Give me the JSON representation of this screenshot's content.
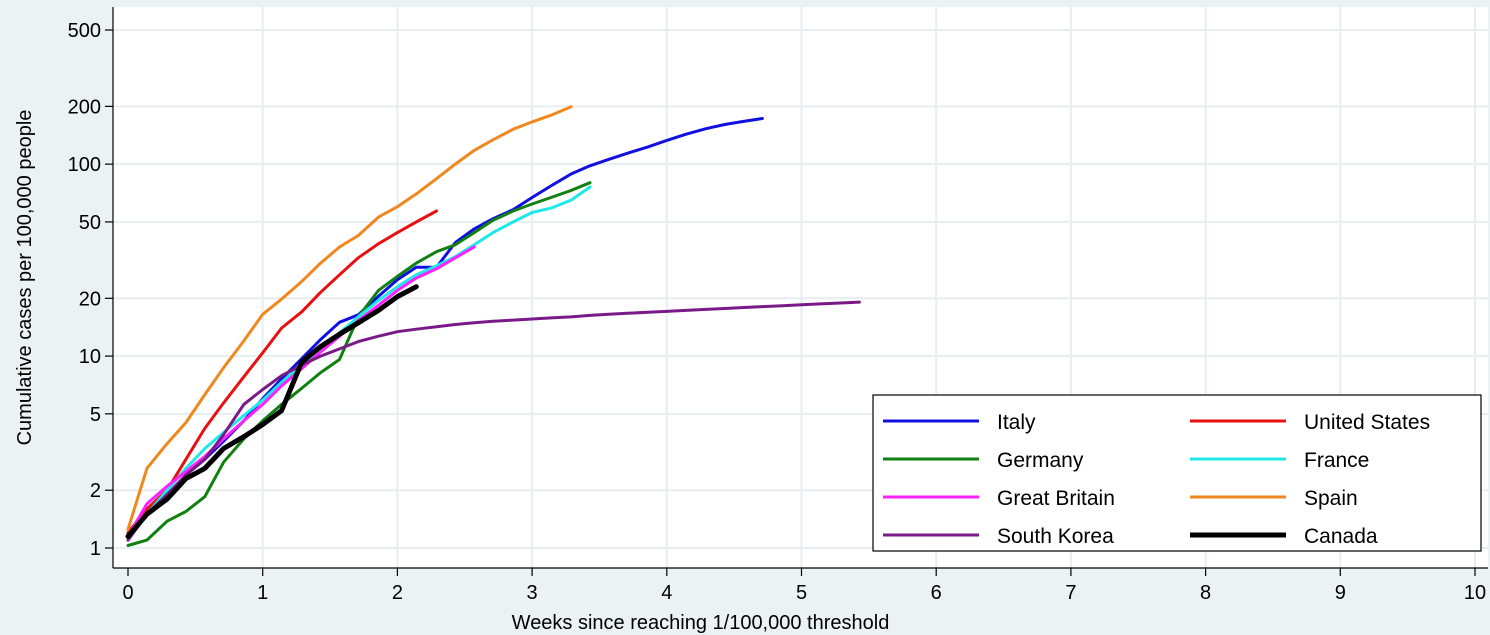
{
  "chart_data": {
    "type": "line",
    "title": "",
    "xlabel": "Weeks since reaching 1/100,000 threshold",
    "ylabel": "Cumulative cases per 100,000 people",
    "xlim": [
      0,
      10
    ],
    "ylim": [
      0.8,
      600
    ],
    "yscale": "log",
    "x_ticks": [
      "0",
      "1",
      "2",
      "3",
      "4",
      "5",
      "6",
      "7",
      "8",
      "9",
      "10"
    ],
    "y_ticks": [
      {
        "value": 1,
        "label": "1"
      },
      {
        "value": 2,
        "label": "2"
      },
      {
        "value": 5,
        "label": "5"
      },
      {
        "value": 10,
        "label": "10"
      },
      {
        "value": 20,
        "label": "20"
      },
      {
        "value": 50,
        "label": "50"
      },
      {
        "value": 100,
        "label": "100"
      },
      {
        "value": 200,
        "label": "200"
      },
      {
        "value": 500,
        "label": "500"
      }
    ],
    "grid": true,
    "legend_position": "bottom-right",
    "series": [
      {
        "name": "Italy",
        "color": "#1010e0",
        "width": 3,
        "x": [
          0,
          0.14,
          0.29,
          0.43,
          0.57,
          0.71,
          0.86,
          1.0,
          1.14,
          1.29,
          1.43,
          1.57,
          1.71,
          1.86,
          2.0,
          2.14,
          2.29,
          2.43,
          2.57,
          2.71,
          2.86,
          3.0,
          3.14,
          3.29,
          3.43,
          3.57,
          3.71,
          3.86,
          4.0,
          4.14,
          4.29,
          4.43,
          4.57,
          4.71
        ],
        "y": [
          1.1,
          1.6,
          1.9,
          2.4,
          2.9,
          3.6,
          4.6,
          6.0,
          7.6,
          9.7,
          12.2,
          15.0,
          16.4,
          20.5,
          25.0,
          29.0,
          29.0,
          39.0,
          46.0,
          52.0,
          58.0,
          67.0,
          77.0,
          89.0,
          98.0,
          106.0,
          114.0,
          123.0,
          133.0,
          143.0,
          153.0,
          161.0,
          167.0,
          173.0
        ]
      },
      {
        "name": "United States",
        "color": "#e81010",
        "width": 3,
        "x": [
          0,
          0.14,
          0.29,
          0.43,
          0.57,
          0.71,
          0.86,
          1.0,
          1.14,
          1.29,
          1.43,
          1.57,
          1.71,
          1.86,
          2.0,
          2.14,
          2.29
        ],
        "y": [
          1.2,
          1.6,
          2.0,
          2.9,
          4.2,
          5.7,
          7.8,
          10.4,
          14.0,
          17.0,
          21.5,
          26.5,
          32.5,
          38.5,
          44.0,
          50.0,
          57.0
        ]
      },
      {
        "name": "Germany",
        "color": "#108010",
        "width": 3,
        "x": [
          0,
          0.14,
          0.29,
          0.43,
          0.57,
          0.71,
          0.86,
          1.0,
          1.14,
          1.29,
          1.43,
          1.57,
          1.71,
          1.86,
          2.0,
          2.14,
          2.29,
          2.43,
          2.57,
          2.71,
          2.86,
          3.0,
          3.14,
          3.29,
          3.43
        ],
        "y": [
          1.03,
          1.1,
          1.38,
          1.55,
          1.85,
          2.8,
          3.7,
          4.6,
          5.6,
          6.8,
          8.2,
          9.6,
          16.0,
          22.0,
          26.0,
          30.5,
          35.0,
          38.0,
          44.0,
          51.0,
          57.0,
          62.0,
          67.0,
          73.0,
          80.0
        ]
      },
      {
        "name": "France",
        "color": "#20e8e8",
        "width": 3,
        "x": [
          0,
          0.14,
          0.29,
          0.43,
          0.57,
          0.71,
          0.86,
          1.0,
          1.14,
          1.29,
          1.43,
          1.57,
          1.71,
          1.86,
          2.0,
          2.14,
          2.29,
          2.43,
          2.57,
          2.71,
          2.86,
          3.0,
          3.14,
          3.29,
          3.43
        ],
        "y": [
          1.1,
          1.5,
          2.0,
          2.6,
          3.3,
          4.0,
          4.9,
          5.9,
          7.3,
          9.0,
          11.0,
          13.2,
          16.0,
          19.5,
          23.0,
          26.5,
          29.5,
          33.0,
          38.0,
          44.0,
          50.0,
          56.0,
          59.0,
          65.0,
          76.0
        ]
      },
      {
        "name": "Great Britain",
        "color": "#ff20ff",
        "width": 3,
        "x": [
          0,
          0.14,
          0.29,
          0.43,
          0.57,
          0.71,
          0.86,
          1.0,
          1.14,
          1.29,
          1.43,
          1.57,
          1.71,
          1.86,
          2.0,
          2.14,
          2.29,
          2.43,
          2.57
        ],
        "y": [
          1.15,
          1.7,
          2.1,
          2.5,
          3.0,
          3.7,
          4.6,
          5.6,
          7.0,
          8.6,
          10.5,
          12.7,
          15.3,
          18.4,
          22.0,
          25.5,
          28.5,
          32.5,
          37.0
        ]
      },
      {
        "name": "Spain",
        "color": "#f08820",
        "width": 3,
        "x": [
          0,
          0.14,
          0.29,
          0.43,
          0.57,
          0.71,
          0.86,
          1.0,
          1.14,
          1.29,
          1.43,
          1.57,
          1.71,
          1.86,
          2.0,
          2.14,
          2.29,
          2.43,
          2.57,
          2.71,
          2.86,
          3.0,
          3.14,
          3.29
        ],
        "y": [
          1.25,
          2.6,
          3.5,
          4.5,
          6.3,
          8.7,
          12.0,
          16.5,
          19.8,
          24.5,
          30.5,
          37.0,
          42.5,
          53.0,
          60.0,
          70.0,
          84.0,
          100.0,
          118.0,
          134.0,
          152.0,
          166.0,
          180.0,
          199.0
        ]
      },
      {
        "name": "South Korea",
        "color": "#7a1a88",
        "width": 3,
        "x": [
          0,
          0.14,
          0.29,
          0.43,
          0.57,
          0.71,
          0.86,
          1.0,
          1.14,
          1.29,
          1.43,
          1.57,
          1.71,
          1.86,
          2.0,
          2.14,
          2.29,
          2.43,
          2.57,
          2.71,
          2.86,
          3.0,
          3.14,
          3.29,
          3.43,
          3.57,
          3.71,
          3.86,
          4.0,
          4.14,
          4.29,
          4.43,
          4.57,
          4.71,
          4.86,
          5.0,
          5.14,
          5.29,
          5.43
        ],
        "y": [
          1.1,
          1.5,
          1.9,
          2.4,
          2.9,
          3.9,
          5.6,
          6.7,
          7.9,
          9.0,
          10.0,
          10.9,
          11.9,
          12.7,
          13.4,
          13.8,
          14.2,
          14.6,
          14.9,
          15.2,
          15.4,
          15.6,
          15.8,
          16.0,
          16.3,
          16.5,
          16.7,
          16.9,
          17.1,
          17.3,
          17.5,
          17.7,
          17.9,
          18.1,
          18.3,
          18.5,
          18.7,
          18.9,
          19.1
        ]
      },
      {
        "name": "Canada",
        "color": "#000000",
        "width": 5,
        "x": [
          0,
          0.14,
          0.29,
          0.43,
          0.57,
          0.71,
          0.86,
          1.0,
          1.14,
          1.29,
          1.43,
          1.57,
          1.71,
          1.86,
          2.0,
          2.14
        ],
        "y": [
          1.15,
          1.5,
          1.8,
          2.3,
          2.6,
          3.3,
          3.8,
          4.4,
          5.2,
          9.3,
          11.2,
          13.0,
          14.9,
          17.3,
          20.4,
          23.0
        ]
      }
    ]
  }
}
